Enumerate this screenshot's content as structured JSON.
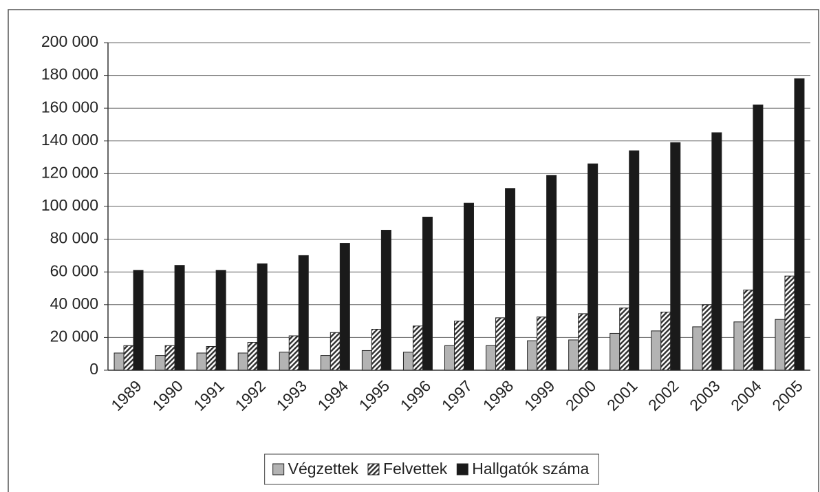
{
  "chart_data": {
    "type": "bar",
    "categories": [
      "1989",
      "1990",
      "1991",
      "1992",
      "1993",
      "1994",
      "1995",
      "1996",
      "1997",
      "1998",
      "1999",
      "2000",
      "2001",
      "2002",
      "2003",
      "2004",
      "2005"
    ],
    "series": [
      {
        "name": "Végzettek",
        "color": "#b3b3b3",
        "values": [
          10500,
          9000,
          10500,
          10500,
          11000,
          9000,
          12000,
          11000,
          15000,
          15000,
          18000,
          18500,
          22500,
          24000,
          26500,
          29500,
          31000
        ]
      },
      {
        "name": "Felvettek",
        "color": "#333333",
        "hatch": true,
        "values": [
          15000,
          15000,
          14500,
          17000,
          21000,
          23000,
          25000,
          27000,
          30000,
          32000,
          32500,
          34500,
          38000,
          35500,
          40000,
          49000,
          57500
        ]
      },
      {
        "name": "Hallgatók száma",
        "color": "#1a1a1a",
        "values": [
          61000,
          64000,
          61000,
          65000,
          70000,
          77500,
          85500,
          93500,
          102000,
          111000,
          119000,
          126000,
          134000,
          139000,
          145000,
          162000,
          178000
        ]
      }
    ],
    "ylim": [
      0,
      200000
    ],
    "yticks": [
      0,
      {
        "value": 20000,
        "label": "20 000"
      },
      {
        "value": 40000,
        "label": "40 000"
      },
      {
        "value": 60000,
        "label": "60 000"
      },
      {
        "value": 80000,
        "label": "80 000"
      },
      {
        "value": 100000,
        "label": "100 000"
      },
      {
        "value": 120000,
        "label": "120 000"
      },
      {
        "value": 140000,
        "label": "140 000"
      },
      {
        "value": 160000,
        "label": "160 000"
      },
      {
        "value": 180000,
        "label": "180 000"
      },
      {
        "value": 200000,
        "label": "200 000"
      }
    ],
    "grid": true,
    "legend": "bottom"
  }
}
